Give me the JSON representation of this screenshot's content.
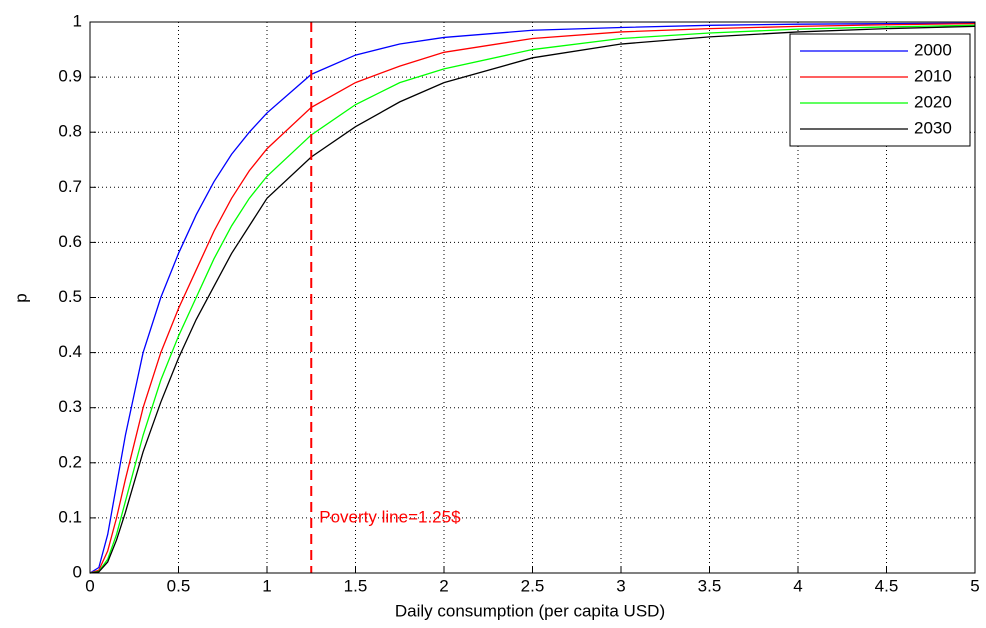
{
  "chart_data": {
    "type": "line",
    "xlabel": "Daily consumption (per capita USD)",
    "ylabel": "p",
    "x": [
      0,
      0.05,
      0.1,
      0.15,
      0.2,
      0.3,
      0.4,
      0.5,
      0.6,
      0.7,
      0.8,
      0.9,
      1,
      1.25,
      1.5,
      1.75,
      2,
      2.5,
      3,
      3.5,
      4,
      4.5,
      5
    ],
    "series": [
      {
        "name": "2000",
        "color": "#0000ff",
        "values": [
          0,
          0.01,
          0.07,
          0.16,
          0.25,
          0.4,
          0.5,
          0.58,
          0.65,
          0.71,
          0.76,
          0.8,
          0.835,
          0.905,
          0.94,
          0.96,
          0.972,
          0.985,
          0.99,
          0.994,
          0.996,
          0.997,
          0.998
        ]
      },
      {
        "name": "2010",
        "color": "#ff0000",
        "values": [
          0,
          0.005,
          0.04,
          0.1,
          0.17,
          0.3,
          0.4,
          0.48,
          0.55,
          0.62,
          0.68,
          0.73,
          0.77,
          0.845,
          0.89,
          0.92,
          0.945,
          0.97,
          0.982,
          0.988,
          0.992,
          0.995,
          0.997
        ]
      },
      {
        "name": "2020",
        "color": "#00ff00",
        "values": [
          0,
          0.003,
          0.025,
          0.07,
          0.13,
          0.25,
          0.35,
          0.43,
          0.5,
          0.57,
          0.63,
          0.68,
          0.72,
          0.795,
          0.85,
          0.89,
          0.915,
          0.95,
          0.97,
          0.98,
          0.987,
          0.991,
          0.994
        ]
      },
      {
        "name": "2030",
        "color": "#000000",
        "values": [
          0,
          0.002,
          0.02,
          0.06,
          0.11,
          0.22,
          0.31,
          0.39,
          0.46,
          0.52,
          0.58,
          0.63,
          0.68,
          0.755,
          0.81,
          0.855,
          0.89,
          0.935,
          0.96,
          0.973,
          0.982,
          0.988,
          0.992
        ]
      }
    ],
    "vline": {
      "x": 1.25,
      "label": "Poverty line=1.25$",
      "color": "#ff0000"
    },
    "xlim": [
      0,
      5
    ],
    "xticks": [
      0,
      0.5,
      1,
      1.5,
      2,
      2.5,
      3,
      3.5,
      4,
      4.5,
      5
    ],
    "ylim": [
      0,
      1
    ],
    "yticks": [
      0,
      0.1,
      0.2,
      0.3,
      0.4,
      0.5,
      0.6,
      0.7,
      0.8,
      0.9,
      1
    ],
    "grid": true,
    "legend": "upper right"
  }
}
